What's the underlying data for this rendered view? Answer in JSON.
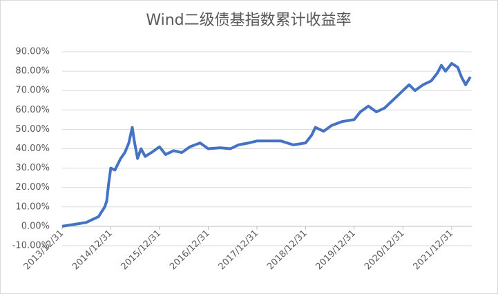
{
  "chart_data": {
    "type": "line",
    "title": "Wind二级债基指数累计收益率",
    "x": [
      "2013/12/31",
      "2014/03/31",
      "2014/06/30",
      "2014/09/30",
      "2014/11/15",
      "2014/11/30",
      "2014/12/15",
      "2014/12/31",
      "2015/01/31",
      "2015/03/15",
      "2015/04/15",
      "2015/05/15",
      "2015/06/10",
      "2015/06/25",
      "2015/07/20",
      "2015/08/15",
      "2015/09/15",
      "2015/10/31",
      "2015/12/31",
      "2016/02/15",
      "2016/04/15",
      "2016/06/15",
      "2016/08/15",
      "2016/10/31",
      "2016/12/31",
      "2017/03/31",
      "2017/06/15",
      "2017/08/15",
      "2017/10/31",
      "2017/12/31",
      "2018/03/31",
      "2018/06/30",
      "2018/09/30",
      "2018/12/31",
      "2019/02/15",
      "2019/03/15",
      "2019/05/15",
      "2019/07/15",
      "2019/09/30",
      "2019/12/31",
      "2020/02/15",
      "2020/04/15",
      "2020/06/15",
      "2020/08/15",
      "2020/10/31",
      "2020/12/31",
      "2021/02/15",
      "2021/03/31",
      "2021/05/31",
      "2021/07/31",
      "2021/09/15",
      "2021/10/15",
      "2021/11/15",
      "2021/12/31",
      "2022/02/15",
      "2022/03/15",
      "2022/04/15",
      "2022/05/20"
    ],
    "series": [
      {
        "name": "Wind二级债基指数",
        "color": "#4472c4",
        "values": [
          0,
          1,
          2,
          5,
          10,
          13,
          22,
          30,
          29,
          35,
          38,
          43,
          51,
          44,
          35,
          40,
          36,
          38,
          41,
          37,
          39,
          38,
          41,
          43,
          40,
          40.5,
          40,
          42,
          43,
          44,
          44,
          44,
          42,
          43,
          47,
          51,
          49,
          52,
          54,
          55,
          59,
          62,
          59,
          61,
          66,
          70,
          73,
          70,
          73,
          75,
          79,
          83,
          80,
          84,
          82,
          77,
          73,
          77
        ]
      }
    ],
    "xlim": [
      "2013/12/31",
      "2022/05/31"
    ],
    "xticks": [
      "2013/12/31",
      "2014/12/31",
      "2015/12/31",
      "2016/12/31",
      "2017/12/31",
      "2018/12/31",
      "2019/12/31",
      "2020/12/31",
      "2021/12/31"
    ],
    "ylim": [
      -10,
      90
    ],
    "yticks": [
      {
        "value": -10,
        "label": "-10.00%"
      },
      {
        "value": 0,
        "label": "0.00%"
      },
      {
        "value": 10,
        "label": "10.00%"
      },
      {
        "value": 20,
        "label": "20.00%"
      },
      {
        "value": 30,
        "label": "30.00%"
      },
      {
        "value": 40,
        "label": "40.00%"
      },
      {
        "value": 50,
        "label": "50.00%"
      },
      {
        "value": 60,
        "label": "60.00%"
      },
      {
        "value": 70,
        "label": "70.00%"
      },
      {
        "value": 80,
        "label": "80.00%"
      },
      {
        "value": 90,
        "label": "90.00%"
      }
    ],
    "grid": true
  }
}
